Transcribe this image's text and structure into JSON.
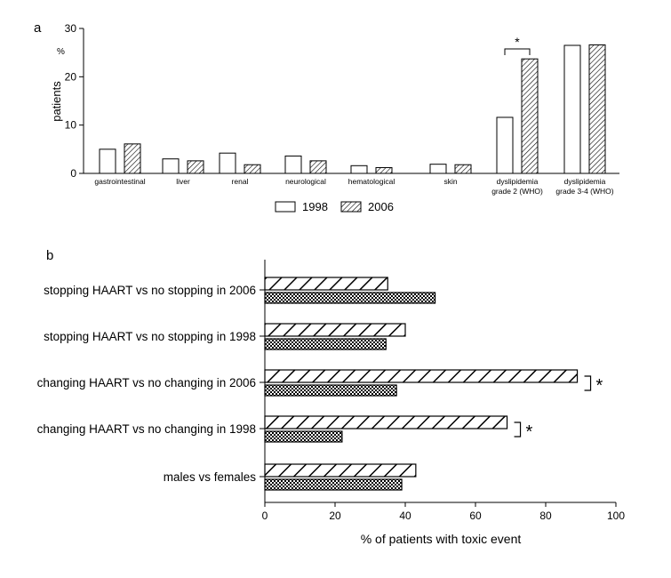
{
  "chart_data": [
    {
      "panel": "a",
      "type": "bar",
      "ylabel": "patients",
      "yunit": "%",
      "ylim": [
        0,
        30
      ],
      "yticks": [
        0,
        10,
        20,
        30
      ],
      "categories": [
        [
          "gastrointestinal"
        ],
        [
          "liver"
        ],
        [
          "renal"
        ],
        [
          "neurological"
        ],
        [
          "hematological"
        ],
        [
          "skin"
        ],
        [
          "dyslipidemia",
          "grade 2 (WHO)"
        ],
        [
          "dyslipidemia",
          "grade 3-4 (WHO)"
        ]
      ],
      "series": [
        {
          "name": "1998",
          "values": [
            5,
            3,
            4.2,
            3.6,
            1.6,
            1.9,
            11.6,
            26.5
          ]
        },
        {
          "name": "2006",
          "values": [
            6.1,
            2.6,
            1.8,
            2.6,
            1.2,
            1.8,
            23.7,
            26.6
          ]
        }
      ],
      "annotations": [
        {
          "category_index": 6,
          "text": "*"
        }
      ],
      "legend": "bottom"
    },
    {
      "panel": "b",
      "type": "bar",
      "orientation": "horizontal",
      "xlabel": "% of patients with toxic event",
      "xlim": [
        0,
        100
      ],
      "xticks": [
        0,
        20,
        40,
        60,
        80,
        100
      ],
      "categories": [
        "stopping HAART vs no stopping in 2006",
        "stopping HAART vs no stopping in 1998",
        "changing HAART vs no changing in 2006",
        "changing HAART vs no changing in 1998",
        "males vs females"
      ],
      "series": [
        {
          "values": [
            35,
            40,
            89,
            69,
            43
          ]
        },
        {
          "values": [
            48.5,
            34.5,
            37.5,
            22,
            39
          ]
        }
      ],
      "annotations": [
        {
          "category_index": 2,
          "text": "*"
        },
        {
          "category_index": 3,
          "text": "*"
        }
      ]
    }
  ]
}
